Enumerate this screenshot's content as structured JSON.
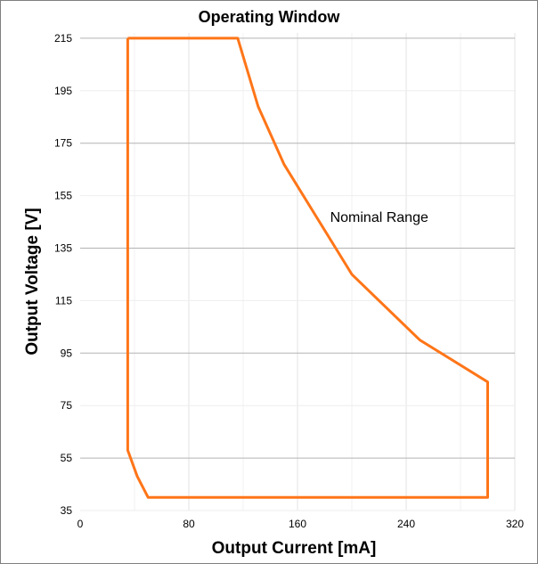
{
  "chart_data": {
    "type": "line",
    "title": "Operating Window",
    "xlabel": "Output Current [mA]",
    "ylabel": "Output Voltage [V]",
    "xlim": [
      0,
      320
    ],
    "ylim": [
      35,
      220
    ],
    "x_ticks": [
      0,
      80,
      160,
      240,
      320
    ],
    "y_ticks": [
      35,
      55,
      75,
      95,
      115,
      135,
      155,
      175,
      195,
      215
    ],
    "grid": {
      "vertical": true,
      "horizontal_major": [
        55,
        95,
        135,
        175,
        215
      ],
      "horizontal_minor": [
        35,
        75,
        115,
        155,
        195
      ]
    },
    "annotations": [
      {
        "text": "Nominal Range",
        "x": 184,
        "y": 145
      }
    ],
    "series": [
      {
        "color": "#ff7518",
        "closed": true,
        "points": [
          [
            35,
            215
          ],
          [
            116,
            215
          ],
          [
            131,
            189
          ],
          [
            150,
            167
          ],
          [
            175,
            146
          ],
          [
            200,
            125
          ],
          [
            250,
            100
          ],
          [
            300,
            84
          ],
          [
            300,
            40
          ],
          [
            50,
            40
          ],
          [
            42,
            48
          ],
          [
            35,
            58
          ],
          [
            35,
            215
          ]
        ]
      }
    ]
  }
}
